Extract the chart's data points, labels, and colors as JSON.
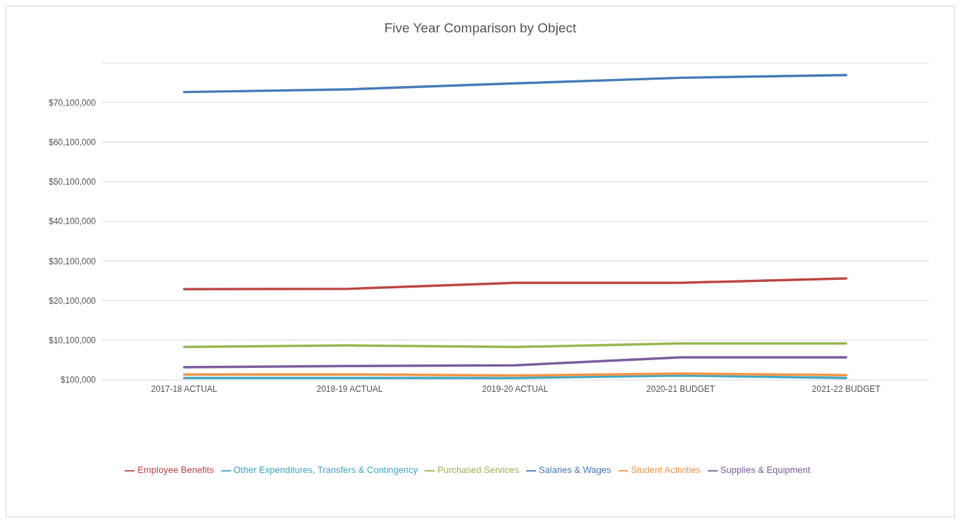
{
  "chart_data": {
    "type": "line",
    "title": "Five Year Comparison by Object",
    "categories": [
      "2017-18 ACTUAL",
      "2018-19 ACTUAL",
      "2019-20 ACTUAL",
      "2020-21 BUDGET",
      "2021-22 BUDGET"
    ],
    "series": [
      {
        "name": "Salaries & Wages",
        "color": "#4a7ebb",
        "values": [
          72700000,
          73400000,
          74900000,
          76300000,
          77000000
        ]
      },
      {
        "name": "Employee Benefits",
        "color": "#be4b48",
        "values": [
          23000000,
          23100000,
          24600000,
          24600000,
          25700000
        ]
      },
      {
        "name": "Purchased Services",
        "color": "#98b954",
        "values": [
          8400000,
          8800000,
          8400000,
          9300000,
          9300000
        ]
      },
      {
        "name": "Supplies & Equipment",
        "color": "#7d60a0",
        "values": [
          3300000,
          3600000,
          3800000,
          5800000,
          5800000
        ]
      },
      {
        "name": "Other Expenditures, Transfers & Contingency",
        "color": "#46aac5",
        "values": [
          600000,
          600000,
          600000,
          1200000,
          600000
        ]
      },
      {
        "name": "Student Activities",
        "color": "#f79646",
        "values": [
          1500000,
          1500000,
          1200000,
          1700000,
          1300000
        ]
      }
    ],
    "ylim": [
      100000,
      80100000
    ],
    "yticks": [
      {
        "value": 100000,
        "label": "$100,000"
      },
      {
        "value": 10100000,
        "label": "$10,100,000"
      },
      {
        "value": 20100000,
        "label": "$20,100,000"
      },
      {
        "value": 30100000,
        "label": "$30,100,000"
      },
      {
        "value": 40100000,
        "label": "$40,100,000"
      },
      {
        "value": 50100000,
        "label": "$50,100,000"
      },
      {
        "value": 60100000,
        "label": "$60,100,000"
      },
      {
        "value": 70100000,
        "label": "$70,100,000"
      },
      {
        "value": 80100000,
        "label": null
      }
    ],
    "grid": "y",
    "legend": "bottom",
    "marker": "none",
    "line_style": "solid"
  }
}
